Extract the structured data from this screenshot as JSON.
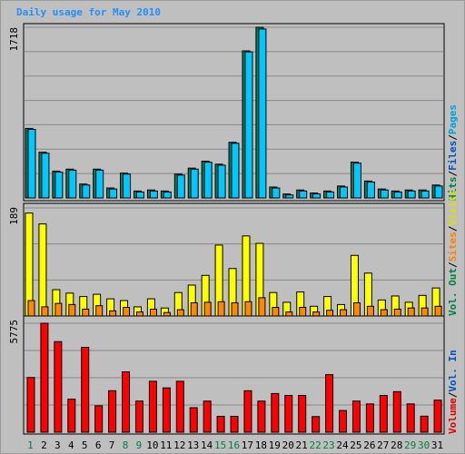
{
  "title": "Daily usage for May 2010",
  "colors": {
    "hits": "#00c8ff",
    "files": "#00a0d0",
    "pages": "#00e0ff",
    "visits": "#ffff00",
    "sites": "#ff8800",
    "kbytes": "#ff0000",
    "weekday_label": "#000000",
    "weekend_label": "#008040",
    "background": "#bfbfbf",
    "panel": "#bfbfbf"
  },
  "chart_data": [
    {
      "type": "bar",
      "panel": "top",
      "ymax_label": "1718",
      "ylim": [
        0,
        1718
      ],
      "x": [
        1,
        2,
        3,
        4,
        5,
        6,
        7,
        8,
        9,
        10,
        11,
        12,
        13,
        14,
        15,
        16,
        17,
        18,
        19,
        20,
        21,
        22,
        23,
        24,
        25,
        26,
        27,
        28,
        29,
        30,
        31
      ],
      "legend": [
        "Hits",
        "Files",
        "Pages"
      ],
      "series": [
        {
          "name": "Hits",
          "values": [
            700,
            460,
            270,
            290,
            140,
            290,
            100,
            250,
            70,
            80,
            70,
            240,
            300,
            370,
            340,
            560,
            1480,
            1718,
            110,
            40,
            80,
            50,
            70,
            120,
            360,
            170,
            90,
            70,
            80,
            80,
            130
          ]
        },
        {
          "name": "Files",
          "values": [
            690,
            450,
            260,
            280,
            130,
            280,
            90,
            240,
            60,
            70,
            60,
            230,
            290,
            360,
            330,
            550,
            1470,
            1700,
            100,
            30,
            70,
            40,
            60,
            110,
            350,
            160,
            80,
            60,
            70,
            70,
            120
          ]
        }
      ]
    },
    {
      "type": "bar",
      "panel": "middle",
      "ymax_label": "189",
      "ylim": [
        0,
        189
      ],
      "x": [
        1,
        2,
        3,
        4,
        5,
        6,
        7,
        8,
        9,
        10,
        11,
        12,
        13,
        14,
        15,
        16,
        17,
        18,
        19,
        20,
        21,
        22,
        23,
        24,
        25,
        26,
        27,
        28,
        29,
        30,
        31
      ],
      "legend": [
        "Visits",
        "Sites",
        "Out",
        "Vol."
      ],
      "series": [
        {
          "name": "Visits",
          "values": [
            180,
            161,
            46,
            40,
            34,
            38,
            30,
            27,
            16,
            30,
            14,
            41,
            54,
            71,
            124,
            83,
            140,
            127,
            41,
            24,
            42,
            17,
            34,
            20,
            106,
            75,
            28,
            35,
            24,
            36,
            49
          ]
        },
        {
          "name": "Sites",
          "values": [
            27,
            16,
            22,
            20,
            12,
            18,
            9,
            15,
            7,
            12,
            6,
            11,
            23,
            24,
            25,
            23,
            25,
            32,
            15,
            7,
            15,
            7,
            10,
            11,
            23,
            17,
            11,
            12,
            14,
            14,
            17
          ]
        }
      ]
    },
    {
      "type": "bar",
      "panel": "bottom",
      "ymax_label": "5775",
      "ylim": [
        0,
        5775
      ],
      "x": [
        1,
        2,
        3,
        4,
        5,
        6,
        7,
        8,
        9,
        10,
        11,
        12,
        13,
        14,
        15,
        16,
        17,
        18,
        19,
        20,
        21,
        22,
        23,
        24,
        25,
        26,
        27,
        28,
        29,
        30,
        31
      ],
      "legend": [
        "In",
        "Volume"
      ],
      "series": [
        {
          "name": "Volume",
          "values": [
            2900,
            5775,
            4800,
            1750,
            4500,
            1400,
            2200,
            3200,
            1650,
            2700,
            2350,
            2700,
            1300,
            1650,
            840,
            840,
            2200,
            1650,
            2050,
            1950,
            1950,
            830,
            3050,
            1150,
            1650,
            1500,
            1950,
            2150,
            1500,
            850,
            1700
          ]
        }
      ]
    }
  ],
  "x_labels": [
    "1",
    "2",
    "3",
    "4",
    "5",
    "6",
    "7",
    "8",
    "9",
    "10",
    "11",
    "12",
    "13",
    "14",
    "15",
    "16",
    "17",
    "18",
    "19",
    "20",
    "21",
    "22",
    "23",
    "24",
    "25",
    "26",
    "27",
    "28",
    "29",
    "30",
    "31"
  ],
  "weekend_days": [
    1,
    8,
    9,
    15,
    16,
    22,
    23,
    29,
    30
  ],
  "legend_text": {
    "top": [
      {
        "text": "Hits",
        "color": "#008040"
      },
      {
        "text": "/",
        "color": "#000000"
      },
      {
        "text": "Files",
        "color": "#0050c0"
      },
      {
        "text": "/",
        "color": "#000000"
      },
      {
        "text": "Pages",
        "color": "#00a0e0"
      }
    ],
    "middle": [
      {
        "text": "Vol. Out",
        "color": "#008040"
      },
      {
        "text": "/",
        "color": "#000000"
      },
      {
        "text": "Sites",
        "color": "#ff8000"
      },
      {
        "text": "/",
        "color": "#000000"
      },
      {
        "text": "Visits",
        "color": "#e0e000"
      }
    ],
    "bottom": [
      {
        "text": "Volume",
        "color": "#e00000"
      },
      {
        "text": "/",
        "color": "#000000"
      },
      {
        "text": "Vol. In",
        "color": "#0050c0"
      }
    ]
  }
}
